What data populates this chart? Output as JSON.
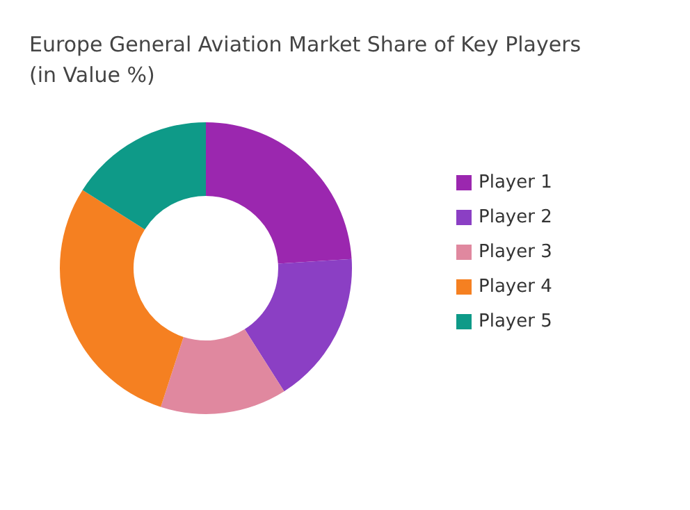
{
  "chart_data": {
    "type": "donut",
    "title": "Europe General Aviation Market Share of Key Players\n(in Value %)",
    "categories": [
      "Player 1",
      "Player 2",
      "Player 3",
      "Player 4",
      "Player 5"
    ],
    "values": [
      24,
      17,
      14,
      29,
      16
    ],
    "colors": [
      "#9b27af",
      "#8b3fc4",
      "#e0889f",
      "#f58021",
      "#0e9a88"
    ],
    "legend": "right"
  }
}
